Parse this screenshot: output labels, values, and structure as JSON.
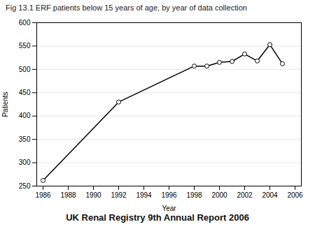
{
  "chart_data": {
    "type": "line",
    "title": "Fig 13.1  ERF patients below 15 years of age, by year of data collection",
    "annotations": [
      "UK Renal Registry 9th Annual Report 2006"
    ],
    "x": [
      1986,
      1992,
      1998,
      1999,
      2000,
      2001,
      2002,
      2003,
      2004,
      2005
    ],
    "values": [
      262,
      430,
      507,
      507,
      515,
      517,
      533,
      518,
      553,
      512
    ],
    "xlabel": "Year",
    "ylabel": "Patients",
    "xlim": [
      1985.5,
      2006.5
    ],
    "ylim": [
      250,
      600
    ],
    "xticks": [
      1986,
      1988,
      1990,
      1992,
      1994,
      1996,
      1998,
      2000,
      2002,
      2004,
      2006
    ],
    "yticks": [
      250,
      300,
      350,
      400,
      450,
      500,
      550,
      600
    ],
    "color": "#000000",
    "marker": "circle",
    "grid": "y"
  }
}
